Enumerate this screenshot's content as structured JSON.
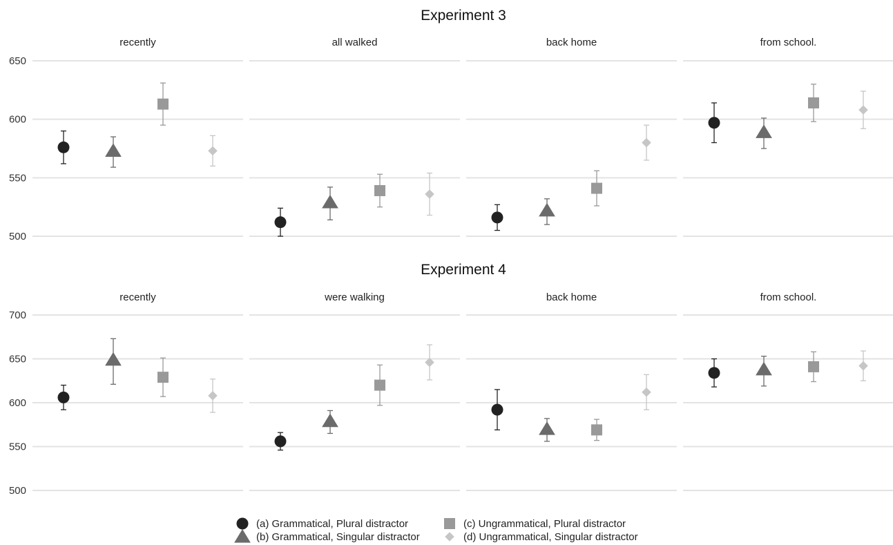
{
  "chart_data": [
    {
      "type": "scatter",
      "title": "Experiment 3",
      "ylim": [
        500,
        650
      ],
      "yticks": [
        500,
        550,
        600,
        650
      ],
      "grid": true,
      "panels": [
        {
          "title": "recently",
          "points": [
            {
              "condition": "a",
              "value": 576,
              "lower": 562,
              "upper": 590
            },
            {
              "condition": "b",
              "value": 573,
              "lower": 559,
              "upper": 585
            },
            {
              "condition": "c",
              "value": 613,
              "lower": 595,
              "upper": 631
            },
            {
              "condition": "d",
              "value": 573,
              "lower": 560,
              "upper": 586
            }
          ]
        },
        {
          "title": "all walked",
          "points": [
            {
              "condition": "a",
              "value": 512,
              "lower": 500,
              "upper": 524
            },
            {
              "condition": "b",
              "value": 529,
              "lower": 514,
              "upper": 542
            },
            {
              "condition": "c",
              "value": 539,
              "lower": 525,
              "upper": 553
            },
            {
              "condition": "d",
              "value": 536,
              "lower": 518,
              "upper": 554
            }
          ]
        },
        {
          "title": "back home",
          "points": [
            {
              "condition": "a",
              "value": 516,
              "lower": 505,
              "upper": 527
            },
            {
              "condition": "b",
              "value": 522,
              "lower": 510,
              "upper": 532
            },
            {
              "condition": "c",
              "value": 541,
              "lower": 526,
              "upper": 556
            },
            {
              "condition": "d",
              "value": 580,
              "lower": 565,
              "upper": 595
            }
          ]
        },
        {
          "title": "from school.",
          "points": [
            {
              "condition": "a",
              "value": 597,
              "lower": 580,
              "upper": 614
            },
            {
              "condition": "b",
              "value": 589,
              "lower": 575,
              "upper": 601
            },
            {
              "condition": "c",
              "value": 614,
              "lower": 598,
              "upper": 630
            },
            {
              "condition": "d",
              "value": 608,
              "lower": 592,
              "upper": 624
            }
          ]
        }
      ]
    },
    {
      "type": "scatter",
      "title": "Experiment 4",
      "ylim": [
        500,
        700
      ],
      "yticks": [
        500,
        550,
        600,
        650,
        700
      ],
      "grid": true,
      "panels": [
        {
          "title": "recently",
          "points": [
            {
              "condition": "a",
              "value": 606,
              "lower": 592,
              "upper": 620
            },
            {
              "condition": "b",
              "value": 649,
              "lower": 621,
              "upper": 673
            },
            {
              "condition": "c",
              "value": 629,
              "lower": 607,
              "upper": 651
            },
            {
              "condition": "d",
              "value": 608,
              "lower": 589,
              "upper": 627
            }
          ]
        },
        {
          "title": "were walking",
          "points": [
            {
              "condition": "a",
              "value": 556,
              "lower": 546,
              "upper": 566
            },
            {
              "condition": "b",
              "value": 579,
              "lower": 565,
              "upper": 591
            },
            {
              "condition": "c",
              "value": 620,
              "lower": 597,
              "upper": 643
            },
            {
              "condition": "d",
              "value": 646,
              "lower": 626,
              "upper": 666
            }
          ]
        },
        {
          "title": "back home",
          "points": [
            {
              "condition": "a",
              "value": 592,
              "lower": 569,
              "upper": 615
            },
            {
              "condition": "b",
              "value": 570,
              "lower": 556,
              "upper": 582
            },
            {
              "condition": "c",
              "value": 569,
              "lower": 557,
              "upper": 581
            },
            {
              "condition": "d",
              "value": 612,
              "lower": 592,
              "upper": 632
            }
          ]
        },
        {
          "title": "from school.",
          "points": [
            {
              "condition": "a",
              "value": 634,
              "lower": 618,
              "upper": 650
            },
            {
              "condition": "b",
              "value": 638,
              "lower": 619,
              "upper": 653
            },
            {
              "condition": "c",
              "value": 641,
              "lower": 624,
              "upper": 658
            },
            {
              "condition": "d",
              "value": 642,
              "lower": 625,
              "upper": 659
            }
          ]
        }
      ]
    }
  ],
  "legend": {
    "position": "bottom",
    "items": [
      {
        "key": "a",
        "label": "(a) Grammatical, Plural distractor",
        "shape": "circle",
        "color": "#222222"
      },
      {
        "key": "b",
        "label": "(b) Grammatical, Singular distractor",
        "shape": "triangle",
        "color": "#6b6b6b"
      },
      {
        "key": "c",
        "label": "(c) Ungrammatical, Plural distractor",
        "shape": "square",
        "color": "#999999"
      },
      {
        "key": "d",
        "label": "(d) Ungrammatical, Singular distractor",
        "shape": "diamond",
        "color": "#c6c6c6"
      }
    ]
  }
}
